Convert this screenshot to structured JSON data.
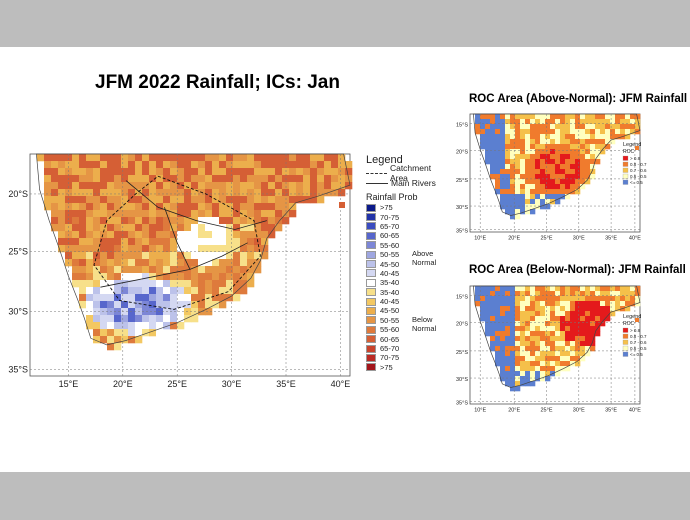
{
  "main_map": {
    "title": "JFM 2022 Rainfall; ICs: Jan",
    "lat_labels": [
      "20°S",
      "25°S",
      "30°S",
      "35°S"
    ],
    "lon_labels": [
      "15°E",
      "20°E",
      "25°E",
      "30°E",
      "35°E",
      "40°E"
    ]
  },
  "legend": {
    "title": "Legend",
    "catchment_label": "Catchment Area",
    "rivers_label": "Main Rivers",
    "prob_title": "Rainfall Prob",
    "items": [
      {
        "label": ">75",
        "color": "#0b1a8a"
      },
      {
        "label": "70-75",
        "color": "#2233a8"
      },
      {
        "label": "65-70",
        "color": "#3a4cc0"
      },
      {
        "label": "60-65",
        "color": "#5766cc"
      },
      {
        "label": "55-60",
        "color": "#7c86d6"
      },
      {
        "label": "50-55",
        "color": "#9ea6e0"
      },
      {
        "label": "45-50",
        "color": "#bcc2ea"
      },
      {
        "label": "40-45",
        "color": "#d4d8f2"
      },
      {
        "label": "35-40",
        "color": "#ffffff"
      },
      {
        "label": "35-40",
        "color": "#f7e08a"
      },
      {
        "label": "40-45",
        "color": "#f3c862"
      },
      {
        "label": "45-50",
        "color": "#ecae4c"
      },
      {
        "label": "50-55",
        "color": "#e59545"
      },
      {
        "label": "55-60",
        "color": "#de7a3c"
      },
      {
        "label": "60-65",
        "color": "#d55f35"
      },
      {
        "label": "65-70",
        "color": "#c9432c"
      },
      {
        "label": "70-75",
        "color": "#bb2a24"
      },
      {
        "label": ">75",
        "color": "#a3151b"
      }
    ],
    "above_normal": [
      "Above",
      "Normal"
    ],
    "below_normal": [
      "Below",
      "Normal"
    ]
  },
  "roc_above": {
    "title": "ROC Area (Above-Normal): JFM Rainfall",
    "lat_labels": [
      "15°S",
      "20°S",
      "25°S",
      "30°S",
      "35°S"
    ],
    "lon_labels": [
      "10°E",
      "20°E",
      "25°E",
      "30°E",
      "35°E",
      "40°E"
    ]
  },
  "roc_below": {
    "title": "ROC Area (Below-Normal): JFM Rainfall",
    "lat_labels": [
      "15°S",
      "20°S",
      "25°S",
      "30°S",
      "35°S"
    ],
    "lon_labels": [
      "10°E",
      "20°E",
      "25°E",
      "30°E",
      "35°E",
      "40°E"
    ]
  },
  "roc_legend": {
    "title": "Legend",
    "subtitle": "ROC",
    "items": [
      {
        "label": "> 0.8",
        "color": "#e41a1c"
      },
      {
        "label": "0.8 - 0.7",
        "color": "#f07b2d"
      },
      {
        "label": "0.7 - 0.6",
        "color": "#f5c04a"
      },
      {
        "label": "0.6 - 0.5",
        "color": "#ffffbf"
      },
      {
        "label": "<= 0.5",
        "color": "#5b7fd0"
      }
    ]
  }
}
